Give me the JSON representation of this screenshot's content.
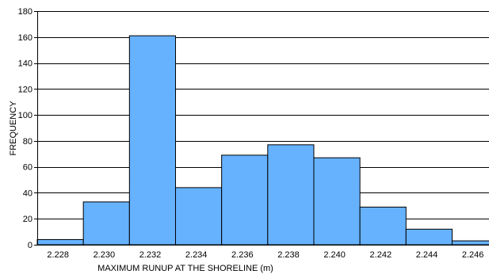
{
  "chart_data": {
    "type": "bar",
    "title": "",
    "xlabel": "MAXIMUM RUNUP AT THE SHORELINE (m)",
    "ylabel": "FREQUENCY",
    "x_ticks": [
      "2.228",
      "2.230",
      "2.232",
      "2.234",
      "2.236",
      "2.238",
      "2.240",
      "2.242",
      "2.244",
      "2.246"
    ],
    "y_ticks": [
      0,
      20,
      40,
      60,
      80,
      100,
      120,
      140,
      160,
      180
    ],
    "ylim": [
      0,
      180
    ],
    "xlim": [
      2.2271,
      2.2467
    ],
    "grid": true,
    "bin_width": 0.002,
    "bins": [
      {
        "start": 2.2271,
        "value": 4
      },
      {
        "start": 2.2291,
        "value": 33
      },
      {
        "start": 2.2311,
        "value": 161
      },
      {
        "start": 2.2331,
        "value": 44
      },
      {
        "start": 2.2351,
        "value": 69
      },
      {
        "start": 2.2371,
        "value": 77
      },
      {
        "start": 2.2391,
        "value": 67
      },
      {
        "start": 2.2411,
        "value": 29
      },
      {
        "start": 2.2431,
        "value": 12
      },
      {
        "start": 2.2451,
        "value": 3
      }
    ],
    "colors": {
      "bar_fill": "#66b2ff",
      "bar_stroke": "#000000",
      "grid": "#000000"
    }
  }
}
